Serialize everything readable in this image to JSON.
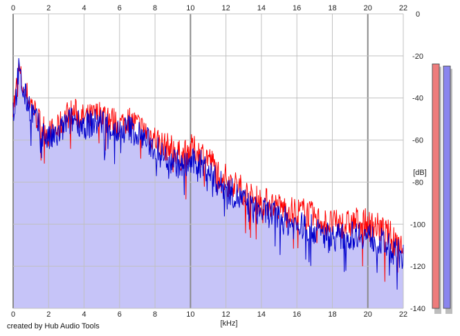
{
  "footer": {
    "credit": "created by Hub Audio Tools"
  },
  "colors": {
    "background": "#ffffff",
    "fill": "#c6c4f8",
    "left_channel": "#ff0000",
    "right_channel": "#0000cc",
    "grid": "#c0c0c0",
    "grid_major": "#8a8a8a",
    "meter_left": "#ee7c7c",
    "meter_right": "#8a85ee"
  },
  "meters": [
    {
      "name": "left",
      "level_db": -12
    },
    {
      "name": "right",
      "level_db": -13
    }
  ],
  "chart_data": {
    "type": "area",
    "xlabel": "[kHz]",
    "ylabel": "[dB]",
    "xlim": [
      0,
      22
    ],
    "ylim": [
      -140,
      0
    ],
    "x_ticks": [
      "0",
      "2",
      "4",
      "6",
      "8",
      "10",
      "12",
      "14",
      "16",
      "18",
      "20",
      "22"
    ],
    "y_ticks": [
      "0",
      "-20",
      "-40",
      "-60",
      "-80",
      "-100",
      "-120",
      "-140"
    ],
    "grid": true,
    "series": [
      {
        "color": "#ff0000",
        "x": [
          0.1,
          0.3,
          0.6,
          1,
          1.5,
          2,
          2.5,
          3,
          3.5,
          4,
          4.5,
          5,
          5.5,
          6,
          6.5,
          7,
          7.5,
          8,
          8.5,
          9,
          9.5,
          10,
          10.5,
          11,
          11.5,
          12,
          12.5,
          13,
          13.5,
          14,
          14.5,
          15,
          15.5,
          16,
          16.5,
          17,
          17.5,
          18,
          18.5,
          19,
          19.5,
          20,
          20.5,
          21,
          21.5,
          22
        ],
        "values": [
          -42,
          -26,
          -36,
          -42,
          -52,
          -57,
          -55,
          -48,
          -47,
          -50,
          -49,
          -47,
          -50,
          -53,
          -50,
          -53,
          -56,
          -59,
          -63,
          -64,
          -68,
          -64,
          -66,
          -68,
          -75,
          -78,
          -81,
          -84,
          -88,
          -89,
          -90,
          -92,
          -93,
          -94,
          -94,
          -97,
          -99,
          -100,
          -100,
          -100,
          -98,
          -100,
          -101,
          -104,
          -106,
          -110
        ]
      },
      {
        "color": "#0000cc",
        "x": [
          0.1,
          0.3,
          0.6,
          1,
          1.5,
          2,
          2.5,
          3,
          3.5,
          4,
          4.5,
          5,
          5.5,
          6,
          6.5,
          7,
          7.5,
          8,
          8.5,
          9,
          9.5,
          10,
          10.5,
          11,
          11.5,
          12,
          12.5,
          13,
          13.5,
          14,
          14.5,
          15,
          15.5,
          16,
          16.5,
          17,
          17.5,
          18,
          18.5,
          19,
          19.5,
          20,
          20.5,
          21,
          21.5,
          22
        ],
        "values": [
          -45,
          -27,
          -38,
          -45,
          -55,
          -60,
          -58,
          -52,
          -50,
          -53,
          -52,
          -51,
          -54,
          -57,
          -54,
          -57,
          -60,
          -64,
          -68,
          -69,
          -73,
          -71,
          -71,
          -74,
          -80,
          -83,
          -86,
          -89,
          -93,
          -94,
          -95,
          -97,
          -99,
          -101,
          -101,
          -103,
          -105,
          -106,
          -106,
          -106,
          -104,
          -106,
          -107,
          -110,
          -113,
          -115
        ]
      }
    ]
  }
}
